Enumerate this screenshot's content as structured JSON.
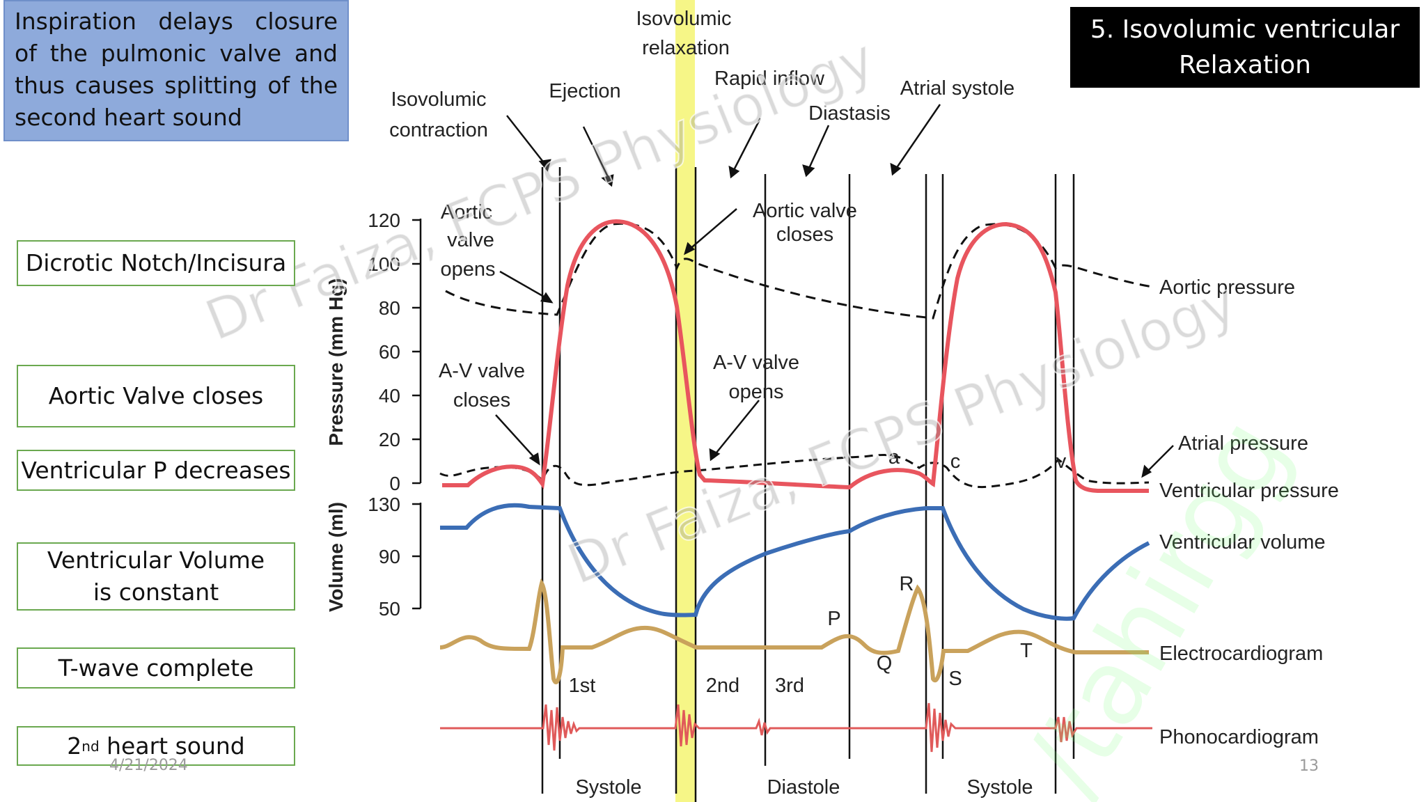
{
  "note": "Inspiration delays closure of the pulmonic valve and thus causes splitting of the second heart sound",
  "title": "5. Isovolumic ventricular Relaxation",
  "labels": {
    "dicrotic": "Dicrotic Notch/Incisura",
    "aortic_closes": "Aortic Valve closes",
    "vent_p": "Ventricular P decreases",
    "vent_vol": "Ventricular Volume is constant",
    "t_wave": "T-wave complete",
    "heart_sound_num": "2",
    "heart_sound_sup": "nd",
    "heart_sound_rest": " heart sound"
  },
  "footer": {
    "date": "4/21/2024",
    "page": "13"
  },
  "diagram": {
    "phases": {
      "isovolumic_relaxation_1": "Isovolumic",
      "isovolumic_relaxation_2": "relaxation",
      "rapid_inflow": "Rapid inflow",
      "atrial_systole": "Atrial systole",
      "isovolumic_contraction_1": "Isovolumic",
      "isovolumic_contraction_2": "contraction",
      "ejection": "Ejection",
      "diastasis": "Diastasis"
    },
    "events": {
      "aortic_opens_1": "Aortic",
      "aortic_opens_2": "valve",
      "aortic_opens_3": "opens",
      "aortic_closes_1": "Aortic valve",
      "aortic_closes_2": "closes",
      "av_closes_1": "A-V valve",
      "av_closes_2": "closes",
      "av_opens_1": "A-V valve",
      "av_opens_2": "opens"
    },
    "curves": {
      "aortic_pressure": "Aortic pressure",
      "atrial_pressure": "Atrial pressure",
      "ventricular_pressure": "Ventricular pressure",
      "ventricular_volume": "Ventricular volume",
      "ecg": "Electrocardiogram",
      "phono": "Phonocardiogram"
    },
    "axes": {
      "pressure_title": "Pressure (mm Hg)",
      "volume_title": "Volume (ml)",
      "pressure_ticks": [
        "120",
        "100",
        "80",
        "60",
        "40",
        "20",
        "0"
      ],
      "volume_ticks": [
        "130",
        "90",
        "50"
      ]
    },
    "ecg_waves": {
      "p": "P",
      "q": "Q",
      "r": "R",
      "s": "S",
      "t": "T"
    },
    "atrial_waves": {
      "a": "a",
      "c": "c",
      "v": "v"
    },
    "sounds": {
      "first": "1st",
      "second": "2nd",
      "third": "3rd"
    },
    "periods": {
      "systole_1": "Systole",
      "diastole": "Diastole",
      "systole_2": "Systole"
    },
    "colors": {
      "ventricular_pressure": "#e8555e",
      "ventricular_volume": "#3b6db5",
      "ecg": "#c9a25c",
      "phono": "#e05a5a",
      "highlight": "#f5f57a"
    }
  },
  "watermarks": {
    "text_1": "Dr Faiza, FCPS Physiology",
    "text_2": "Dr Faiza, FCPS Physiology",
    "text_3": "/tahirgg"
  }
}
